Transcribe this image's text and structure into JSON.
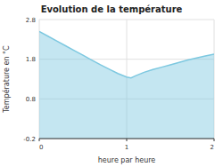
{
  "chart_data": {
    "type": "area",
    "title": "Evolution de la température",
    "xlabel": "heure par heure",
    "ylabel": "Température en °C",
    "x": [
      0,
      0.1,
      0.2,
      0.3,
      0.4,
      0.5,
      0.6,
      0.7,
      0.8,
      0.9,
      1.0,
      1.05,
      1.1,
      1.2,
      1.3,
      1.4,
      1.5,
      1.6,
      1.7,
      1.8,
      1.9,
      2.0
    ],
    "values": [
      2.5,
      2.38,
      2.26,
      2.14,
      2.02,
      1.9,
      1.78,
      1.66,
      1.55,
      1.44,
      1.35,
      1.33,
      1.38,
      1.47,
      1.54,
      1.6,
      1.66,
      1.72,
      1.78,
      1.83,
      1.88,
      1.93
    ],
    "xlim": [
      0,
      2
    ],
    "ylim": [
      -0.2,
      2.8
    ],
    "xticks": [
      0,
      1,
      2
    ],
    "yticks": [
      -0.2,
      0.8,
      1.8,
      2.8
    ],
    "color": "#7DC8E0",
    "grid": true
  }
}
